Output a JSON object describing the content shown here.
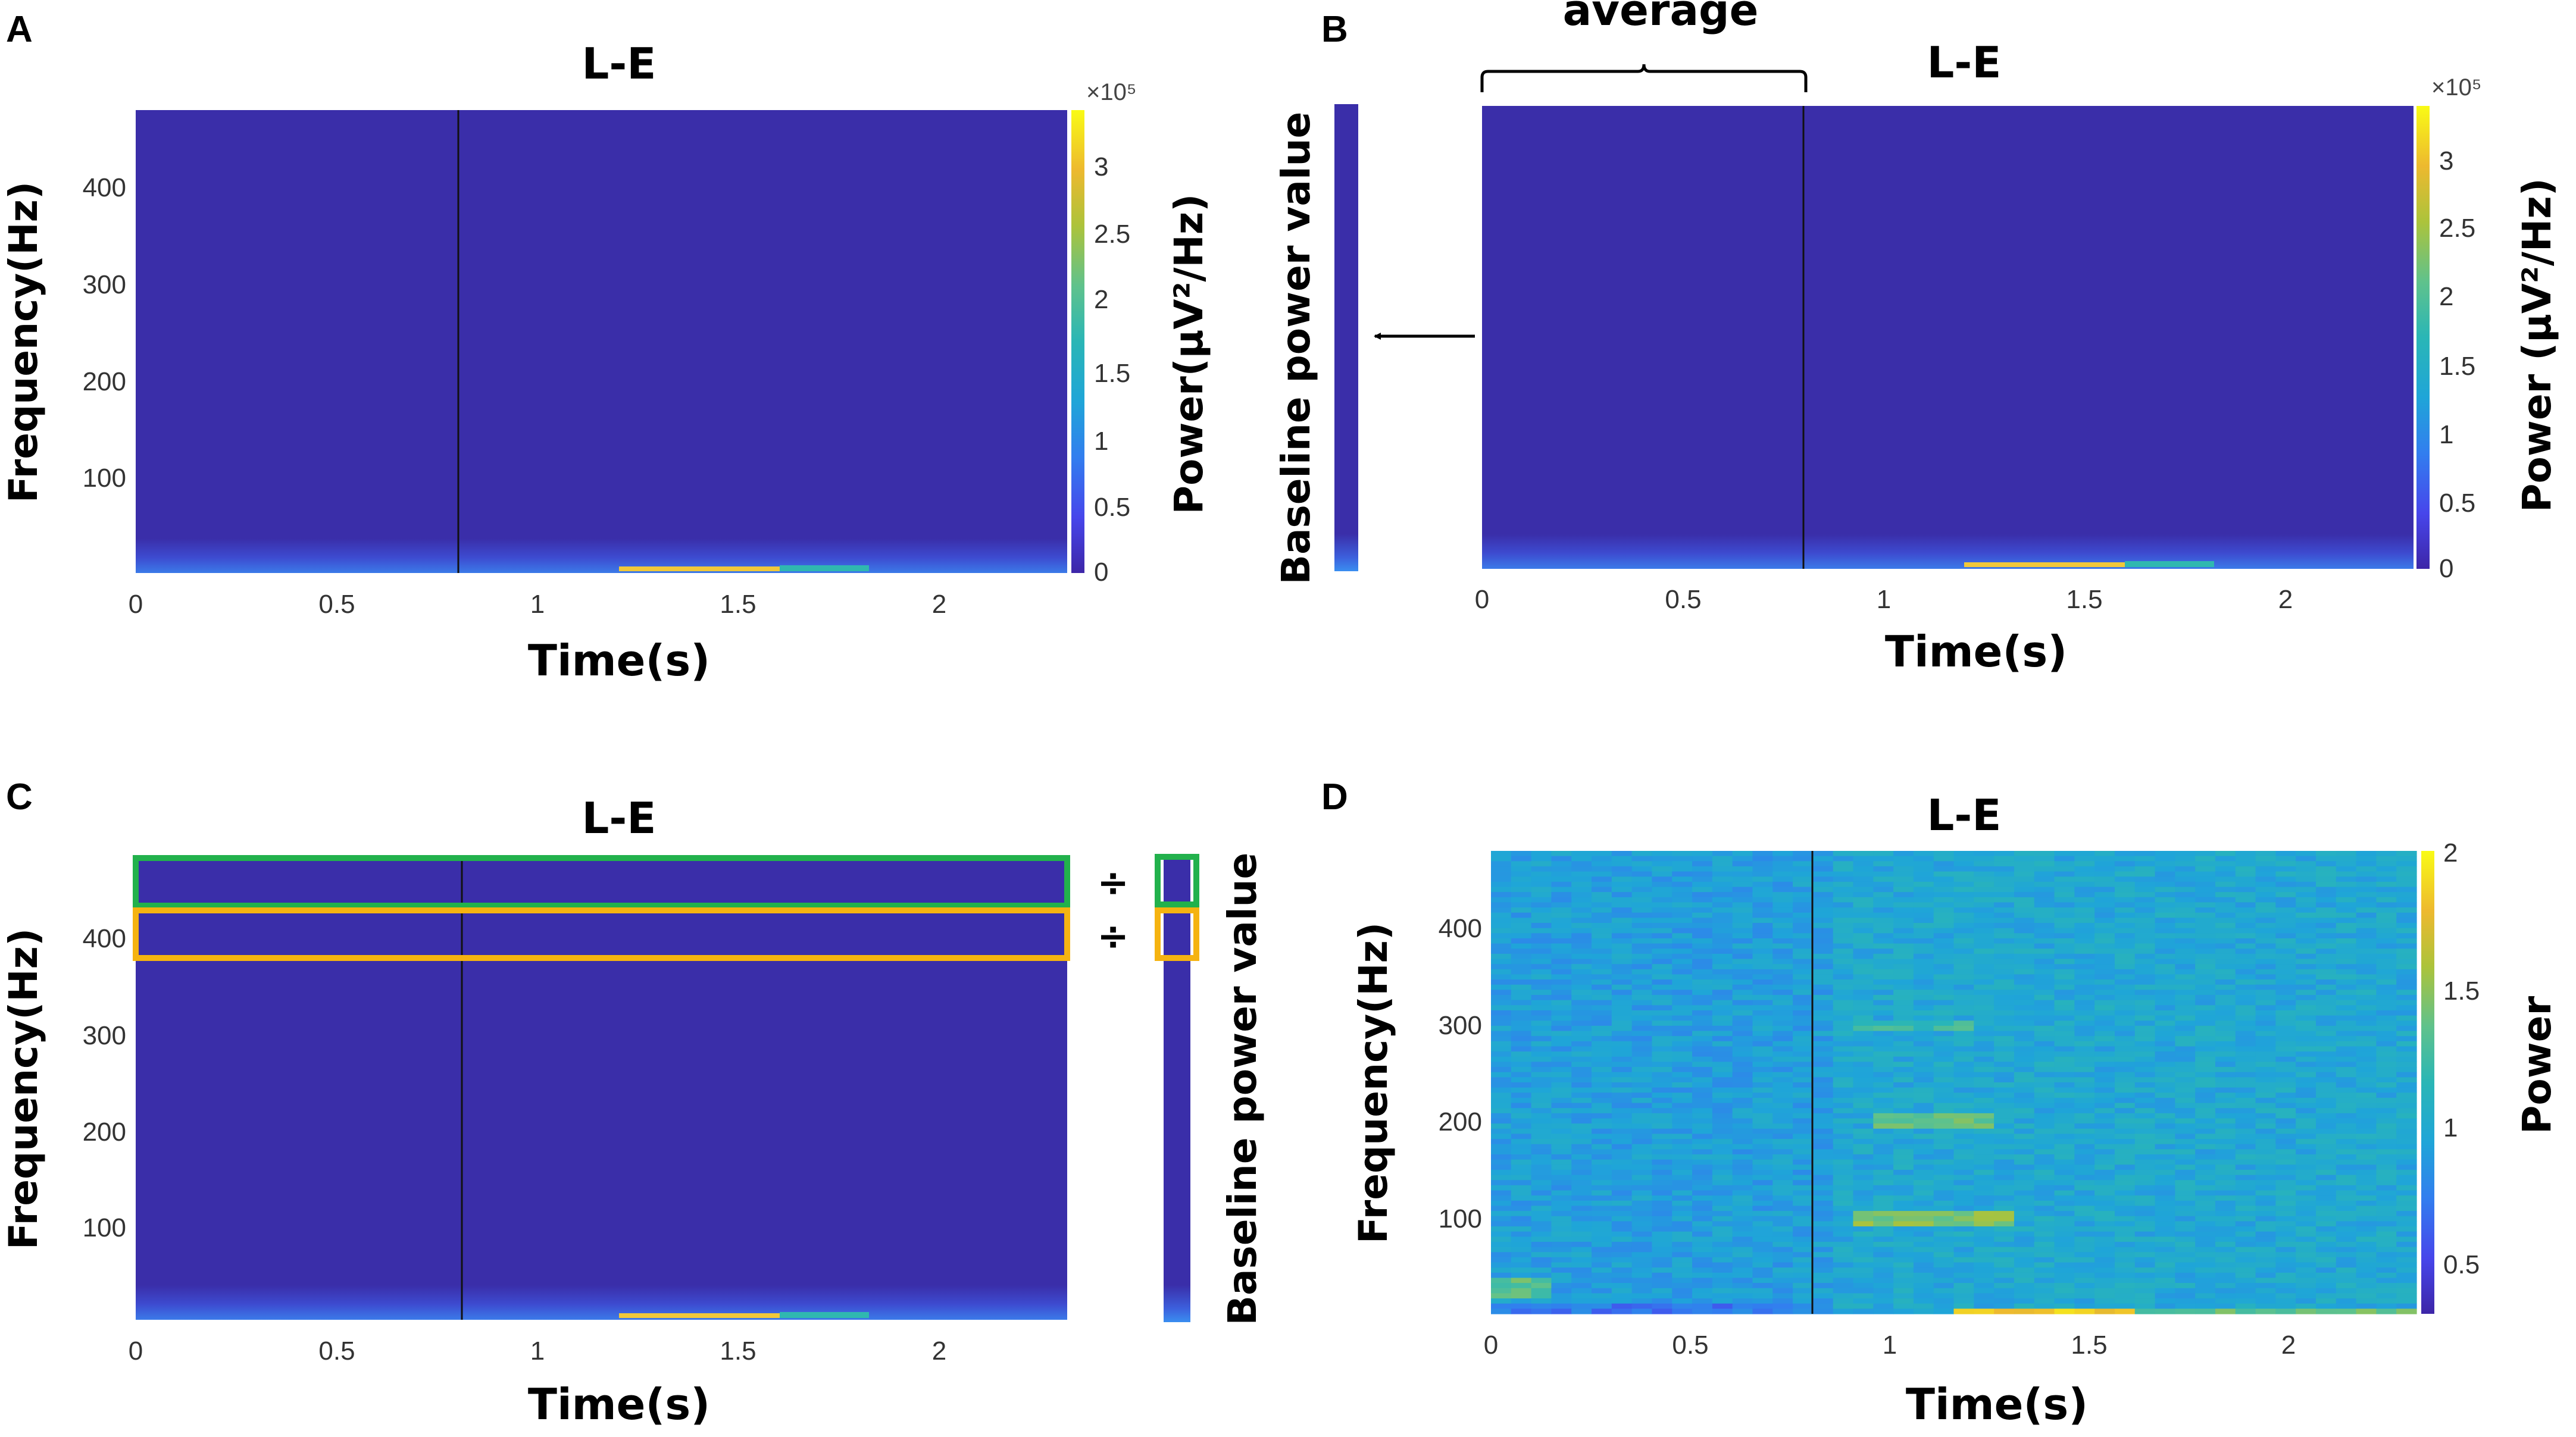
{
  "figure": {
    "annotation_average": "average",
    "divide_symbol": "÷"
  },
  "colors": {
    "base": "#3a2ea9",
    "low_band": "#3b6fe6",
    "hot_band": "#f0c83a",
    "mid_teal": "#2fb8b0",
    "green_box": "#22b14c",
    "orange_box": "#f5b311",
    "colorbar_stops": [
      "#3d26a8",
      "#4746eb",
      "#327eef",
      "#1fa5d8",
      "#2ab6b6",
      "#5fc28c",
      "#acc33b",
      "#edb92f",
      "#f9fb15"
    ]
  },
  "chart_data": [
    {
      "panel": "A",
      "type": "heatmap",
      "title": "L-E",
      "xlabel": "Time(s)",
      "ylabel": "Frequency(Hz)",
      "xlim": [
        0,
        2.32
      ],
      "ylim": [
        0,
        480
      ],
      "x_ticks": [
        "0",
        "0.5",
        "1",
        "1.5",
        "2"
      ],
      "y_ticks": [
        "100",
        "200",
        "300",
        "400"
      ],
      "colorbar_label": "Power(μV²/Hz)",
      "colorbar_multiplier": "×10⁵",
      "colorbar_ticks": [
        "0",
        "0.5",
        "1",
        "1.5",
        "2",
        "2.5",
        "3"
      ],
      "colorbar_range": [
        0,
        3.3
      ],
      "event_line_time": 0.8,
      "baseline_window": [
        0,
        0.8
      ],
      "notes": "Power concentrated below ~30 Hz; peak near 1.2–1.6 s at lowest frequencies"
    },
    {
      "panel": "B",
      "type": "heatmap",
      "title": "L-E",
      "xlabel": "Time(s)",
      "ylabel": "",
      "xlim": [
        0,
        2.32
      ],
      "ylim": [
        0,
        480
      ],
      "x_ticks": [
        "0",
        "0.5",
        "1",
        "1.5",
        "2"
      ],
      "y_ticks": [],
      "colorbar_label": "Power (μV²/Hz)",
      "colorbar_multiplier": "×10⁵",
      "colorbar_ticks": [
        "0",
        "0.5",
        "1",
        "1.5",
        "2",
        "2.5",
        "3"
      ],
      "colorbar_range": [
        0,
        3.3
      ],
      "event_line_time": 0.8,
      "baseline_window": [
        0,
        0.8
      ],
      "baseline_label": "Baseline power value"
    },
    {
      "panel": "C",
      "type": "heatmap",
      "title": "L-E",
      "xlabel": "Time(s)",
      "ylabel": "Frequency(Hz)",
      "xlim": [
        0,
        2.32
      ],
      "ylim": [
        0,
        480
      ],
      "x_ticks": [
        "0",
        "0.5",
        "1",
        "1.5",
        "2"
      ],
      "y_ticks": [
        "100",
        "200",
        "300",
        "400"
      ],
      "event_line_time": 0.8,
      "highlighted_rows_hz": [
        [
          430,
          480
        ],
        [
          380,
          430
        ]
      ],
      "baseline_label": "Baseline power value"
    },
    {
      "panel": "D",
      "type": "heatmap",
      "title": "L-E",
      "xlabel": "Time(s)",
      "ylabel": "Frequency(Hz)",
      "xlim": [
        0,
        2.32
      ],
      "ylim": [
        0,
        480
      ],
      "x_ticks": [
        "0",
        "0.5",
        "1",
        "1.5",
        "2"
      ],
      "y_ticks": [
        "100",
        "200",
        "300",
        "400"
      ],
      "colorbar_label": "Power",
      "colorbar_ticks": [
        "0.5",
        "1",
        "1.5",
        "2"
      ],
      "colorbar_range": [
        0.3,
        2.0
      ],
      "event_line_time": 0.8,
      "notes": "Baseline-normalized power; elevated near 100 Hz and 200 Hz around 1.0–1.2 s and near 0 Hz around 1.2–1.6 s"
    }
  ]
}
